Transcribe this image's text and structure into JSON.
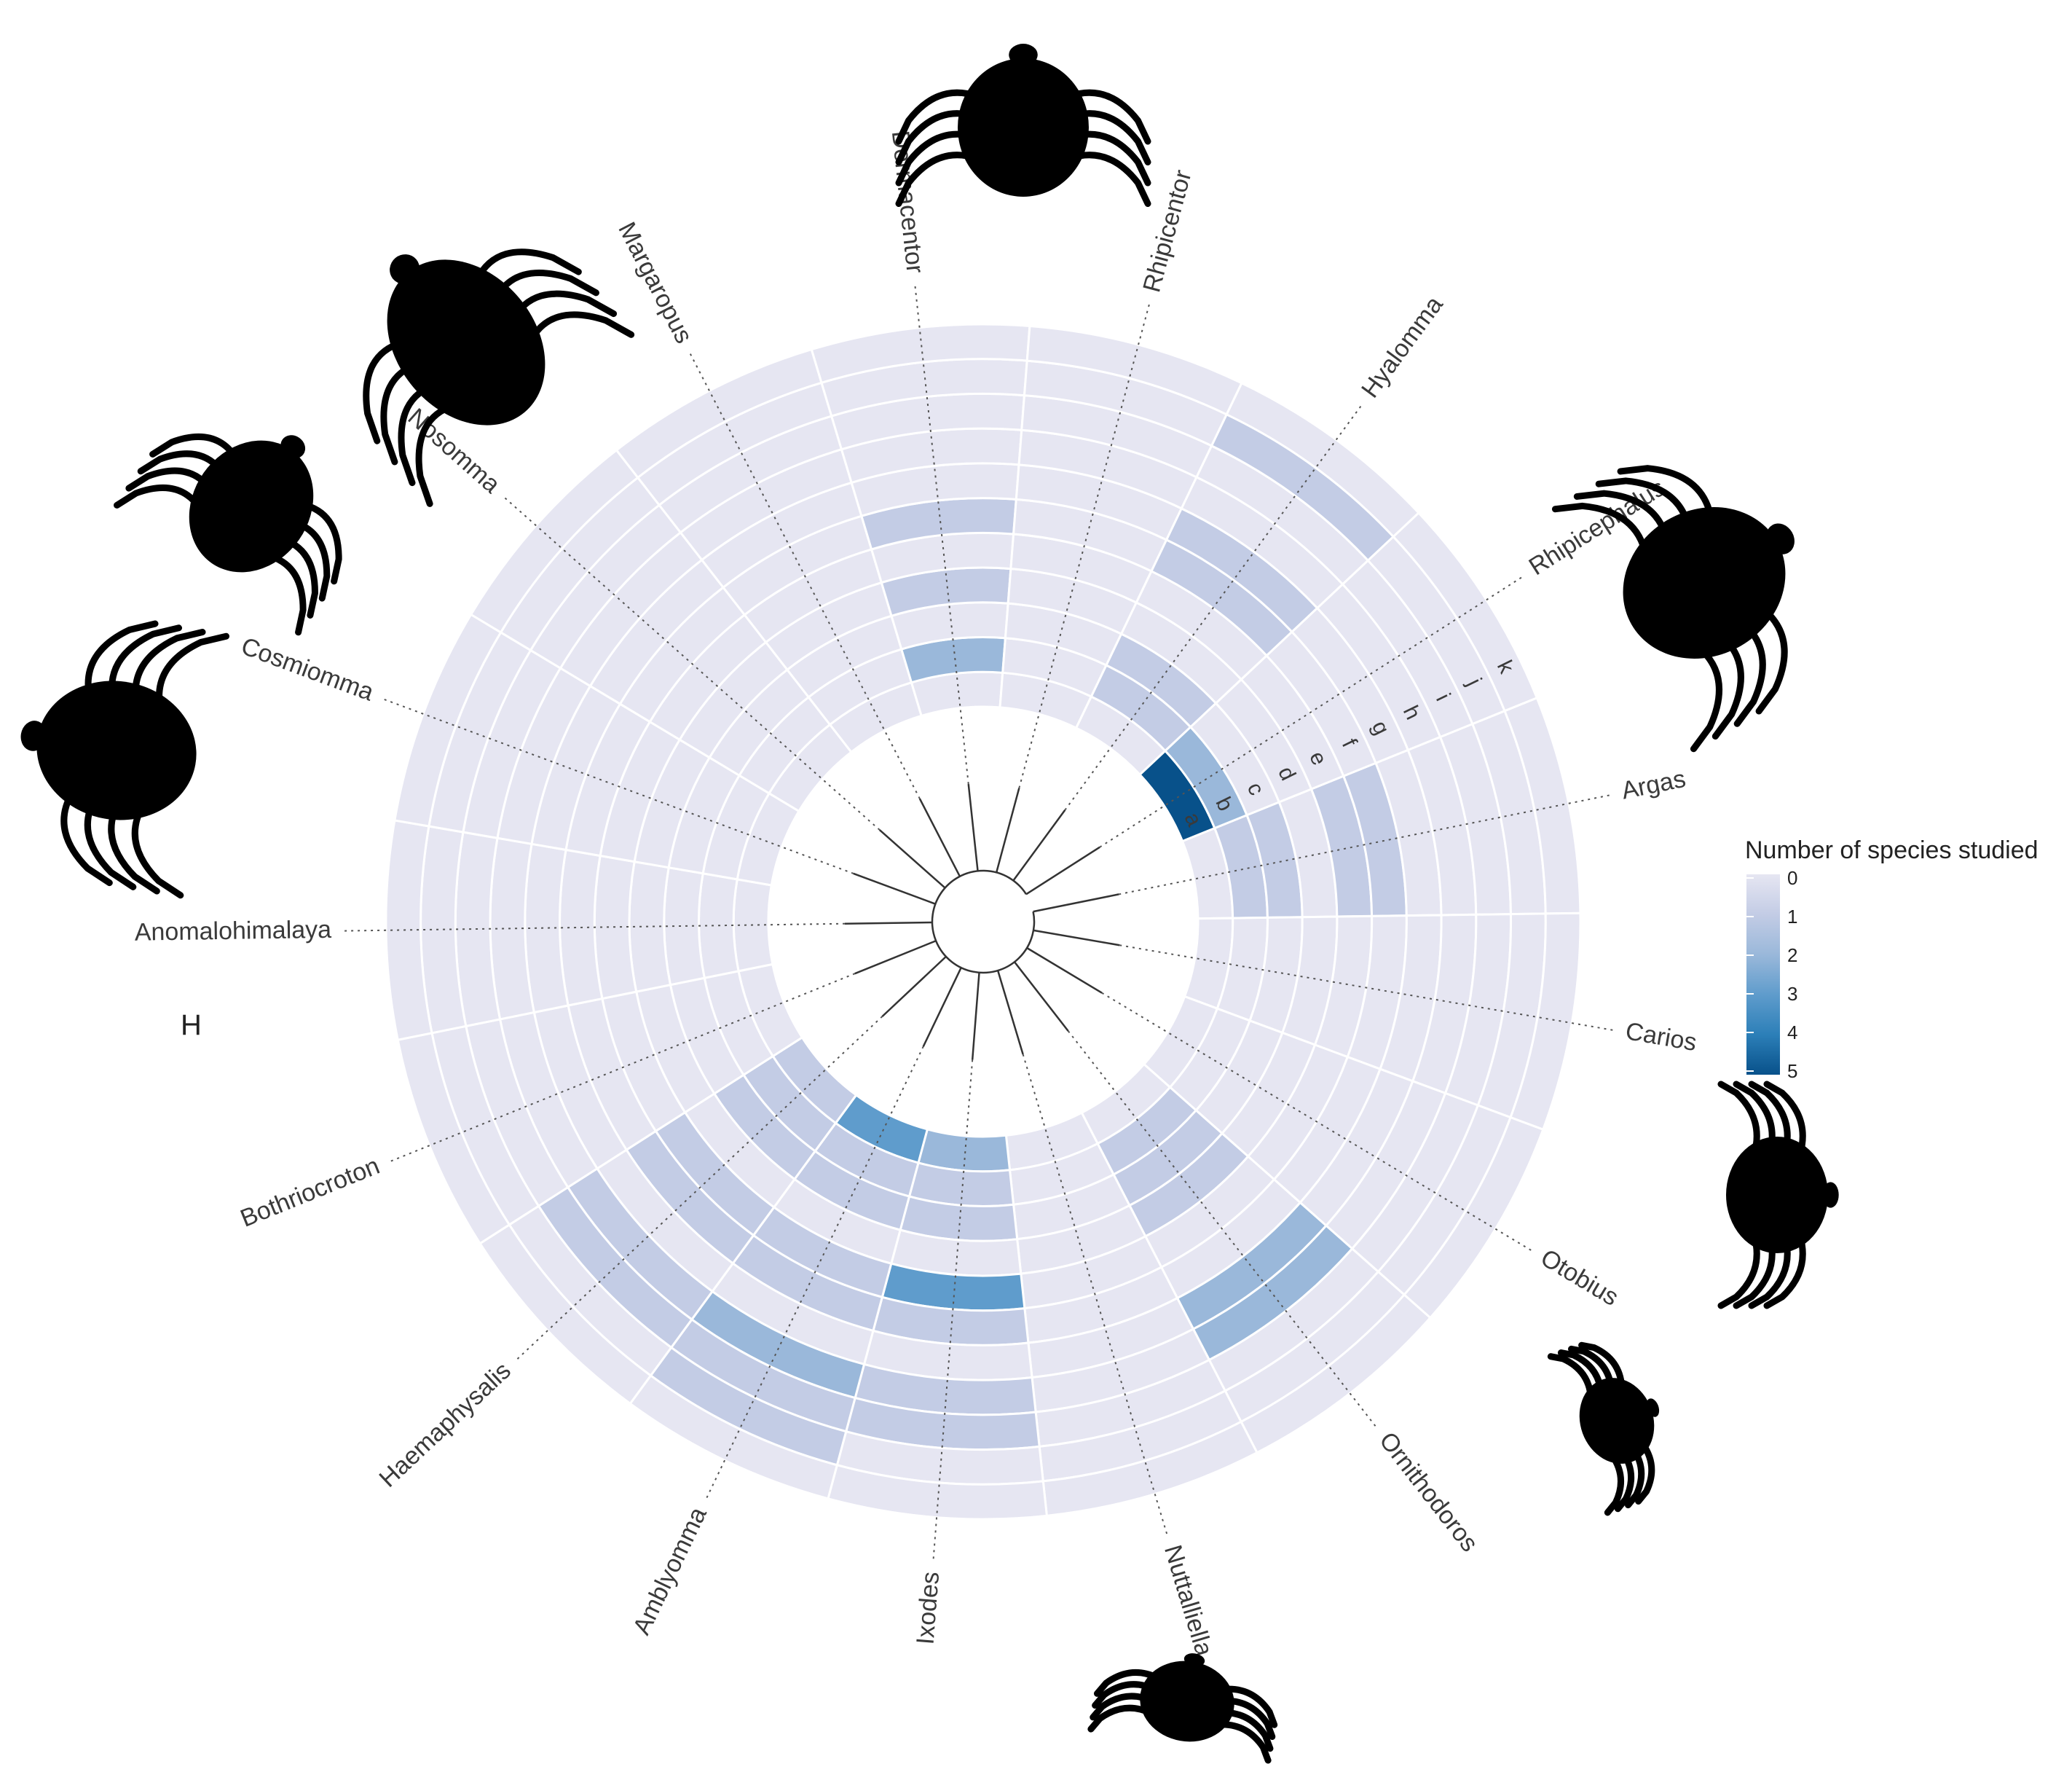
{
  "chart_data": {
    "type": "heatmap",
    "layout": "circular",
    "title": "",
    "legend": {
      "title": "Number of species studied",
      "placement": "right",
      "ticks": [
        0,
        1,
        2,
        3,
        4,
        5
      ],
      "colors": [
        "#e6e6f2",
        "#c3cce5",
        "#9ab8da",
        "#5f9ccc",
        "#2c7fb8",
        "#08518a"
      ]
    },
    "rings": [
      "a",
      "b",
      "c",
      "d",
      "e",
      "f",
      "g",
      "h",
      "i",
      "j",
      "k"
    ],
    "stray_label": "H",
    "genera": [
      {
        "name": "Argas",
        "values": [
          0,
          1,
          1,
          0,
          1,
          1,
          0,
          0,
          0,
          0,
          0
        ]
      },
      {
        "name": "Carios",
        "values": [
          0,
          0,
          0,
          0,
          0,
          0,
          0,
          0,
          0,
          0,
          0
        ]
      },
      {
        "name": "Otobius",
        "values": [
          0,
          0,
          0,
          0,
          0,
          0,
          0,
          0,
          0,
          0,
          0
        ]
      },
      {
        "name": "Ornithodoros",
        "values": [
          0,
          1,
          1,
          1,
          0,
          0,
          2,
          2,
          0,
          0,
          0
        ]
      },
      {
        "name": "Nuttalliella",
        "values": [
          0,
          0,
          0,
          0,
          0,
          0,
          0,
          0,
          0,
          0,
          0
        ]
      },
      {
        "name": "Ixodes",
        "values": [
          2,
          1,
          1,
          0,
          3,
          1,
          0,
          1,
          1,
          0,
          0
        ]
      },
      {
        "name": "Amblyomma",
        "values": [
          3,
          1,
          1,
          0,
          1,
          1,
          0,
          2,
          1,
          1,
          0
        ]
      },
      {
        "name": "Haemaphysalis",
        "values": [
          1,
          1,
          1,
          0,
          1,
          1,
          0,
          1,
          1,
          0,
          0
        ]
      },
      {
        "name": "Bothriocroton",
        "values": [
          0,
          0,
          0,
          0,
          0,
          0,
          0,
          0,
          0,
          0,
          0
        ]
      },
      {
        "name": "Anomalohimalaya",
        "values": [
          0,
          0,
          0,
          0,
          0,
          0,
          0,
          0,
          0,
          0,
          0
        ]
      },
      {
        "name": "Cosmiomma",
        "values": [
          0,
          0,
          0,
          0,
          0,
          0,
          0,
          0,
          0,
          0,
          0
        ]
      },
      {
        "name": "Nosomma",
        "values": [
          0,
          0,
          0,
          0,
          0,
          0,
          0,
          0,
          0,
          0,
          0
        ]
      },
      {
        "name": "Margaropus",
        "values": [
          0,
          0,
          0,
          0,
          0,
          0,
          0,
          0,
          0,
          0,
          0
        ]
      },
      {
        "name": "Dermacentor",
        "values": [
          0,
          2,
          0,
          1,
          0,
          1,
          0,
          0,
          0,
          0,
          0
        ]
      },
      {
        "name": "Rhipicentor",
        "values": [
          0,
          0,
          0,
          0,
          0,
          0,
          0,
          0,
          0,
          0,
          0
        ]
      },
      {
        "name": "Hyalomma",
        "values": [
          0,
          1,
          1,
          0,
          0,
          1,
          1,
          0,
          0,
          1,
          0
        ]
      },
      {
        "name": "Rhipicephalus",
        "values": [
          5,
          2,
          0,
          0,
          0,
          0,
          0,
          0,
          0,
          0,
          0
        ]
      }
    ],
    "grid": true
  }
}
